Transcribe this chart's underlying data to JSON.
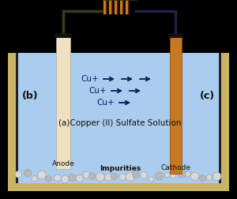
{
  "bg_color": "#000000",
  "tank_wall_color": "#c8b464",
  "tank_inner_dark": "#111111",
  "solution_color": "#aaccee",
  "anode_color": "#f0e0c0",
  "cathode_color": "#c87820",
  "wire_color": "#111111",
  "wire_color2": "#3a3a20",
  "label_b": "(b)",
  "label_c": "(c)",
  "label_anode": "Anode",
  "label_cathode": "Cathode",
  "label_solution": "(a)Copper (II) Sulfate Solution",
  "label_impurities": "Impurities",
  "arrow_color": "#002060",
  "impurity_light": "#d8d8d8",
  "impurity_mid": "#b8b8b8",
  "resistor_dark": "#5a2800",
  "resistor_light": "#c87820",
  "figsize": [
    3.0,
    2.52
  ],
  "dpi": 100
}
